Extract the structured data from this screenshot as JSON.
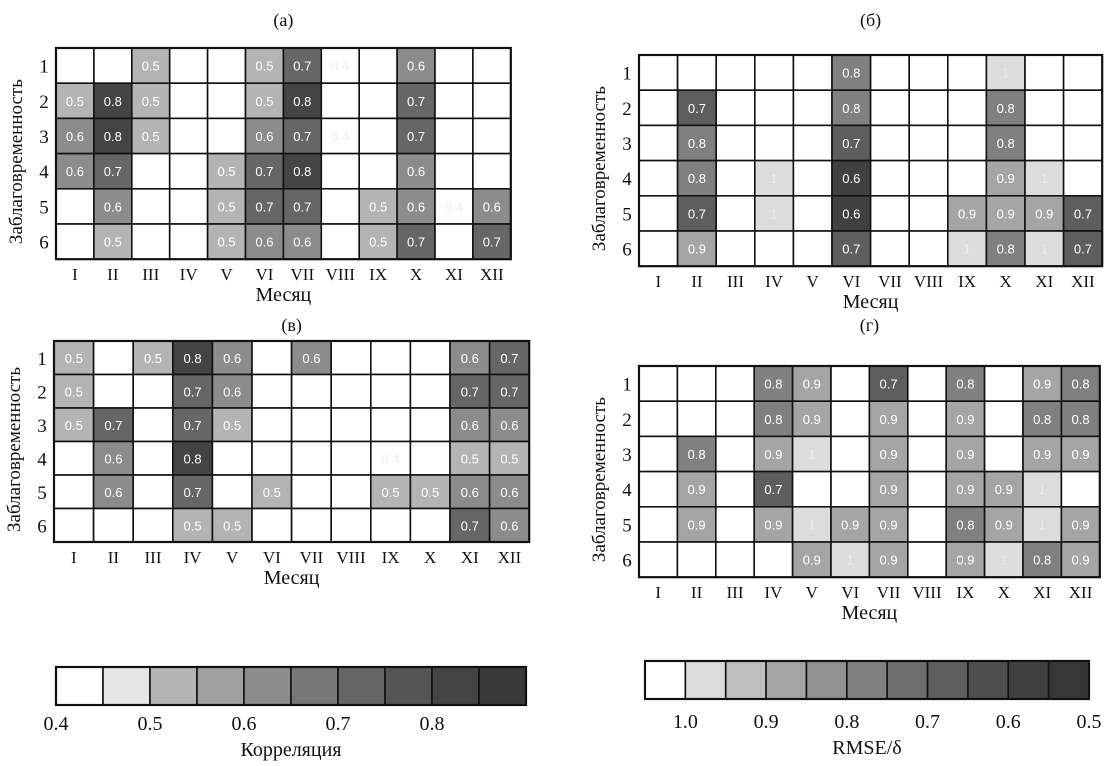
{
  "chart_data": [
    {
      "type": "heatmap",
      "title": "(а)",
      "xlabel": "Месяц",
      "ylabel": "Заблаговременность",
      "x_categories": [
        "I",
        "II",
        "III",
        "IV",
        "V",
        "VI",
        "VII",
        "VIII",
        "IX",
        "X",
        "XI",
        "XII"
      ],
      "y_categories": [
        "1",
        "2",
        "3",
        "4",
        "5",
        "6"
      ],
      "colorbar": "correlation",
      "values": [
        [
          null,
          null,
          0.5,
          null,
          null,
          0.5,
          0.7,
          0.4,
          null,
          0.6,
          null,
          null
        ],
        [
          0.5,
          0.8,
          0.5,
          null,
          null,
          0.5,
          0.8,
          null,
          null,
          0.7,
          null,
          null
        ],
        [
          0.6,
          0.8,
          0.5,
          null,
          null,
          0.6,
          0.7,
          0.4,
          null,
          0.7,
          null,
          null
        ],
        [
          0.6,
          0.7,
          null,
          null,
          0.5,
          0.7,
          0.8,
          null,
          null,
          0.6,
          null,
          null
        ],
        [
          null,
          0.6,
          null,
          null,
          0.5,
          0.7,
          0.7,
          null,
          0.5,
          0.6,
          0.4,
          0.6
        ],
        [
          null,
          0.5,
          null,
          null,
          0.5,
          0.6,
          0.6,
          null,
          0.5,
          0.7,
          null,
          0.7
        ]
      ]
    },
    {
      "type": "heatmap",
      "title": "(б)",
      "xlabel": "Месяц",
      "ylabel": "Заблаговременность",
      "x_categories": [
        "I",
        "II",
        "III",
        "IV",
        "V",
        "VI",
        "VII",
        "VIII",
        "IX",
        "X",
        "XI",
        "XII"
      ],
      "y_categories": [
        "1",
        "2",
        "3",
        "4",
        "5",
        "6"
      ],
      "colorbar": "rmse",
      "values": [
        [
          null,
          null,
          null,
          null,
          null,
          0.8,
          null,
          null,
          null,
          1,
          null,
          null
        ],
        [
          null,
          0.7,
          null,
          null,
          null,
          0.8,
          null,
          null,
          null,
          0.8,
          null,
          null
        ],
        [
          null,
          0.8,
          null,
          null,
          null,
          0.7,
          null,
          null,
          null,
          0.8,
          null,
          null
        ],
        [
          null,
          0.8,
          null,
          1,
          null,
          0.6,
          null,
          null,
          null,
          0.9,
          1,
          null
        ],
        [
          null,
          0.7,
          null,
          1,
          null,
          0.6,
          null,
          null,
          0.9,
          0.9,
          0.9,
          0.7
        ],
        [
          null,
          0.9,
          null,
          null,
          null,
          0.7,
          null,
          null,
          1,
          0.8,
          1,
          0.7
        ]
      ]
    },
    {
      "type": "heatmap",
      "title": "(в)",
      "xlabel": "Месяц",
      "ylabel": "Заблаговременность",
      "x_categories": [
        "I",
        "II",
        "III",
        "IV",
        "V",
        "VI",
        "VII",
        "VIII",
        "IX",
        "X",
        "XI",
        "XII"
      ],
      "y_categories": [
        "1",
        "2",
        "3",
        "4",
        "5",
        "6"
      ],
      "colorbar": "correlation",
      "values": [
        [
          0.5,
          null,
          0.5,
          0.8,
          0.6,
          null,
          0.6,
          null,
          null,
          null,
          0.6,
          0.7
        ],
        [
          0.5,
          null,
          null,
          0.7,
          0.6,
          null,
          null,
          null,
          null,
          null,
          0.7,
          0.7
        ],
        [
          0.5,
          0.7,
          null,
          0.7,
          0.5,
          null,
          null,
          null,
          null,
          null,
          0.6,
          0.6
        ],
        [
          null,
          0.6,
          null,
          0.8,
          null,
          null,
          null,
          null,
          0.4,
          null,
          0.5,
          0.5
        ],
        [
          null,
          0.6,
          null,
          0.7,
          null,
          0.5,
          null,
          null,
          0.5,
          0.5,
          0.6,
          0.6
        ],
        [
          null,
          null,
          null,
          0.5,
          0.5,
          null,
          null,
          null,
          null,
          null,
          0.7,
          0.6
        ]
      ]
    },
    {
      "type": "heatmap",
      "title": "(г)",
      "xlabel": "Месяц",
      "ylabel": "Заблаговременность",
      "x_categories": [
        "I",
        "II",
        "III",
        "IV",
        "V",
        "VI",
        "VII",
        "VIII",
        "IX",
        "X",
        "XI",
        "XII"
      ],
      "y_categories": [
        "1",
        "2",
        "3",
        "4",
        "5",
        "6"
      ],
      "colorbar": "rmse",
      "values": [
        [
          null,
          null,
          null,
          0.8,
          0.9,
          null,
          0.7,
          null,
          0.8,
          null,
          0.9,
          0.8
        ],
        [
          null,
          null,
          null,
          0.8,
          0.9,
          null,
          0.9,
          null,
          0.9,
          null,
          0.8,
          0.8
        ],
        [
          null,
          0.8,
          null,
          0.9,
          1,
          null,
          0.9,
          null,
          0.9,
          null,
          0.9,
          0.9
        ],
        [
          null,
          0.9,
          null,
          0.7,
          null,
          null,
          0.9,
          null,
          0.9,
          0.9,
          1,
          null
        ],
        [
          null,
          0.9,
          null,
          0.9,
          1,
          0.9,
          0.9,
          null,
          0.8,
          0.9,
          1,
          0.9
        ],
        [
          null,
          null,
          null,
          null,
          0.9,
          1,
          0.9,
          null,
          0.9,
          1,
          0.8,
          0.9
        ]
      ]
    }
  ],
  "colorbars": {
    "correlation": {
      "label": "Корреляция",
      "range": [
        0.4,
        0.9
      ],
      "tick_labels": [
        "0.4",
        "0.5",
        "0.6",
        "0.7",
        "0.8"
      ],
      "tick_values": [
        0.4,
        0.5,
        0.6,
        0.7,
        0.8
      ],
      "colors": [
        "#ffffff",
        "#e6e6e6",
        "#b4b4b4",
        "#a0a0a0",
        "#8c8c8c",
        "#777777",
        "#666666",
        "#555555",
        "#444444",
        "#3a3a3a"
      ]
    },
    "rmse": {
      "label": "RMSE/δ",
      "range": [
        1.05,
        0.5
      ],
      "tick_labels": [
        "1.0",
        "0.9",
        "0.8",
        "0.7",
        "0.6",
        "0.5"
      ],
      "tick_values": [
        1.0,
        0.9,
        0.8,
        0.7,
        0.6,
        0.5
      ],
      "colors": [
        "#ffffff",
        "#dcdcdc",
        "#bdbdbd",
        "#a5a5a5",
        "#919191",
        "#808080",
        "#6e6e6e",
        "#5e5e5e",
        "#4e4e4e",
        "#404040",
        "#363636"
      ]
    }
  }
}
